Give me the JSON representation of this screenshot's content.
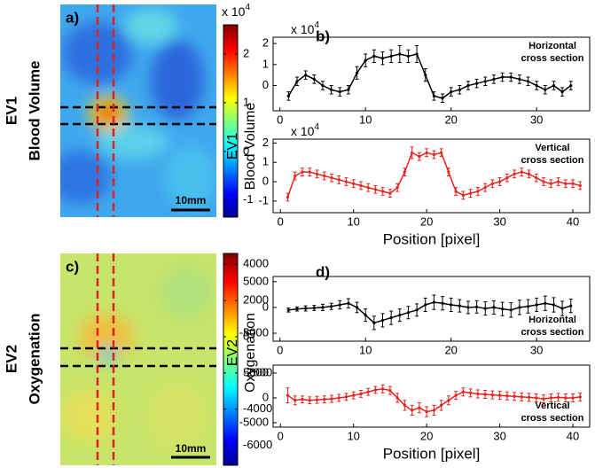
{
  "chart_data": [
    {
      "type": "image",
      "panel": "a)",
      "row_label": [
        "EV1",
        "Blood Volume"
      ],
      "scale_bar": "10mm",
      "clim": [
        -1.35,
        2.6
      ],
      "cticks": [
        -1,
        0,
        1,
        2
      ],
      "scale_label": "x 10",
      "scale_exp": "4"
    },
    {
      "type": "line",
      "panel": "b)",
      "ylabel": [
        "EV1",
        "Blood Volume"
      ],
      "scale_label": "x 10",
      "scale_exp": "4",
      "note": [
        "Horizontal",
        "cross section"
      ],
      "note_corner": "upper right",
      "xlim": [
        -0.8,
        36.2
      ],
      "xticks": [
        0,
        10,
        20,
        30
      ],
      "ylim": [
        -1.2,
        2.3
      ],
      "yticks": [
        0,
        1,
        2
      ],
      "series": [
        {
          "color": "#000000",
          "x": [
            1,
            2,
            3,
            4,
            5,
            6,
            7,
            8,
            9,
            10,
            11,
            12,
            13,
            14,
            15,
            16,
            17,
            18,
            19,
            20,
            21,
            22,
            23,
            24,
            25,
            26,
            27,
            28,
            29,
            30,
            31,
            32,
            33,
            34
          ],
          "values": [
            -0.5,
            0.2,
            0.5,
            0.3,
            0,
            -0.2,
            -0.3,
            -0.2,
            0.6,
            1.2,
            1.4,
            1.3,
            1.4,
            1.5,
            1.4,
            1.5,
            0.5,
            -0.5,
            -0.6,
            -0.3,
            -0.2,
            0,
            0.1,
            0.2,
            0.3,
            0.4,
            0.4,
            0.3,
            0.2,
            0,
            -0.2,
            0,
            -0.3,
            0
          ],
          "errors": [
            0.2,
            0.2,
            0.2,
            0.2,
            0.2,
            0.2,
            0.2,
            0.2,
            0.3,
            0.3,
            0.3,
            0.3,
            0.3,
            0.4,
            0.3,
            0.4,
            0.3,
            0.2,
            0.2,
            0.2,
            0.2,
            0.2,
            0.2,
            0.2,
            0.2,
            0.2,
            0.2,
            0.2,
            0.2,
            0.2,
            0.2,
            0.2,
            0.2,
            0.2
          ]
        }
      ]
    },
    {
      "type": "line",
      "scale_label": "x 10",
      "scale_exp": "4",
      "xlabel": "Position [pixel]",
      "note": [
        "Vertical",
        "cross section"
      ],
      "note_corner": "upper right",
      "xlim": [
        -1,
        42.3
      ],
      "xticks": [
        0,
        10,
        20,
        30,
        40
      ],
      "ylim": [
        -1.6,
        2.2
      ],
      "yticks": [
        -1,
        0,
        1,
        2
      ],
      "series": [
        {
          "color": "#e8231e",
          "x": [
            1,
            2,
            3,
            4,
            5,
            6,
            7,
            8,
            9,
            10,
            11,
            12,
            13,
            14,
            15,
            16,
            17,
            18,
            19,
            20,
            21,
            22,
            23,
            24,
            25,
            26,
            27,
            28,
            29,
            30,
            31,
            32,
            33,
            34,
            35,
            36,
            37,
            38,
            39,
            40,
            41
          ],
          "values": [
            -0.8,
            0.3,
            0.5,
            0.5,
            0.4,
            0.3,
            0.2,
            0.1,
            0,
            -0.1,
            -0.2,
            -0.3,
            -0.4,
            -0.5,
            -0.6,
            -0.3,
            0.5,
            1.5,
            1.3,
            1.5,
            1.4,
            1.5,
            0.5,
            -0.5,
            -0.7,
            -0.6,
            -0.5,
            -0.3,
            -0.1,
            0,
            0.2,
            0.4,
            0.5,
            0.4,
            0.2,
            0,
            -0.1,
            0,
            -0.1,
            -0.1,
            -0.2
          ],
          "errors": [
            0.2,
            0.2,
            0.2,
            0.2,
            0.2,
            0.2,
            0.2,
            0.2,
            0.2,
            0.2,
            0.2,
            0.2,
            0.2,
            0.2,
            0.2,
            0.2,
            0.2,
            0.3,
            0.2,
            0.2,
            0.2,
            0.2,
            0.2,
            0.2,
            0.2,
            0.2,
            0.2,
            0.2,
            0.2,
            0.2,
            0.2,
            0.2,
            0.2,
            0.2,
            0.2,
            0.2,
            0.2,
            0.2,
            0.2,
            0.2,
            0.2
          ]
        }
      ]
    },
    {
      "type": "image",
      "panel": "c)",
      "row_label": [
        "EV2",
        "Oxygenation"
      ],
      "scale_bar": "10mm",
      "clim": [
        -7100,
        4600
      ],
      "cticks": [
        -6000,
        -4000,
        -2000,
        0,
        2000,
        4000
      ]
    },
    {
      "type": "line",
      "panel": "d)",
      "ylabel": [
        "EV2",
        "Oxygenation"
      ],
      "note": [
        "Horizontal",
        "cross section"
      ],
      "note_corner": "lower right",
      "xlim": [
        -0.8,
        36.2
      ],
      "xticks": [
        0,
        10,
        20,
        30
      ],
      "ylim": [
        -6550,
        6000
      ],
      "yticks": [
        -5000,
        0,
        5000
      ],
      "series": [
        {
          "color": "#000000",
          "x": [
            1,
            2,
            3,
            4,
            5,
            6,
            7,
            8,
            9,
            10,
            11,
            12,
            13,
            14,
            15,
            16,
            17,
            18,
            19,
            20,
            21,
            22,
            23,
            24,
            25,
            26,
            27,
            28,
            29,
            30,
            31,
            32,
            33,
            34
          ],
          "values": [
            -500,
            -300,
            -200,
            -100,
            0,
            200,
            500,
            800,
            0,
            -1500,
            -3000,
            -2500,
            -2000,
            -1500,
            -1000,
            -500,
            500,
            1000,
            800,
            500,
            300,
            0,
            100,
            -200,
            0,
            -300,
            -500,
            0,
            200,
            500,
            800,
            500,
            -200,
            300
          ],
          "errors": [
            400,
            400,
            500,
            500,
            600,
            600,
            800,
            900,
            1000,
            1200,
            1300,
            1300,
            1300,
            1200,
            1200,
            1200,
            1300,
            1400,
            1300,
            1300,
            1200,
            1200,
            1200,
            1300,
            1300,
            1300,
            1400,
            1400,
            1300,
            1300,
            1400,
            1400,
            1400,
            1300
          ]
        }
      ]
    },
    {
      "type": "line",
      "xlabel": "Position [pixel]",
      "note": [
        "Vertical",
        "cross section"
      ],
      "note_corner": "lower right",
      "xlim": [
        -1,
        42.3
      ],
      "xticks": [
        0,
        10,
        20,
        30,
        40
      ],
      "ylim": [
        -5900,
        6600
      ],
      "yticks": [
        -5000,
        0,
        5000
      ],
      "series": [
        {
          "color": "#e8231e",
          "x": [
            1,
            2,
            3,
            4,
            5,
            6,
            7,
            8,
            9,
            10,
            11,
            12,
            13,
            14,
            15,
            16,
            17,
            18,
            19,
            20,
            21,
            22,
            23,
            24,
            25,
            26,
            27,
            28,
            29,
            30,
            31,
            32,
            33,
            34,
            35,
            36,
            37,
            38,
            39,
            40,
            41
          ],
          "values": [
            500,
            -500,
            -300,
            -500,
            -400,
            -300,
            -200,
            0,
            200,
            500,
            800,
            1200,
            1600,
            1800,
            1500,
            0,
            -1500,
            -2500,
            -2000,
            -2800,
            -2500,
            -1500,
            -500,
            500,
            1200,
            1000,
            800,
            700,
            600,
            500,
            400,
            300,
            200,
            100,
            0,
            -200,
            0,
            100,
            0,
            0,
            200
          ],
          "errors": [
            1500,
            900,
            700,
            700,
            700,
            700,
            700,
            700,
            700,
            700,
            700,
            700,
            700,
            800,
            800,
            900,
            1000,
            1000,
            1000,
            1000,
            1000,
            1000,
            900,
            800,
            800,
            800,
            800,
            800,
            800,
            800,
            800,
            800,
            800,
            800,
            800,
            800,
            800,
            800,
            800,
            800,
            800
          ]
        }
      ]
    }
  ]
}
